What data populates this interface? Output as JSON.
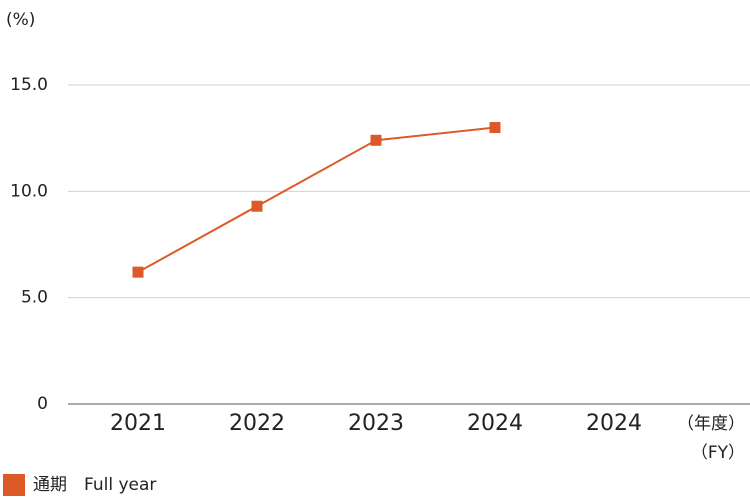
{
  "chart_data": {
    "type": "line",
    "y_unit_label": "(%)",
    "x_unit_label": [
      "（年度）",
      "（FY）"
    ],
    "categories": [
      "2021",
      "2022",
      "2023",
      "2024",
      "2024"
    ],
    "series": [
      {
        "name": "通期　Full year",
        "color": "#dc5a28",
        "values": [
          6.2,
          9.3,
          12.4,
          13.0,
          null
        ]
      }
    ],
    "ylim": [
      0,
      15
    ],
    "yticks": [
      0,
      {
        "value": 5,
        "label": "5.0"
      },
      {
        "value": 10,
        "label": "10.0"
      },
      {
        "value": 15,
        "label": "15.0"
      }
    ],
    "grid": true,
    "legend": "bottom-left"
  }
}
